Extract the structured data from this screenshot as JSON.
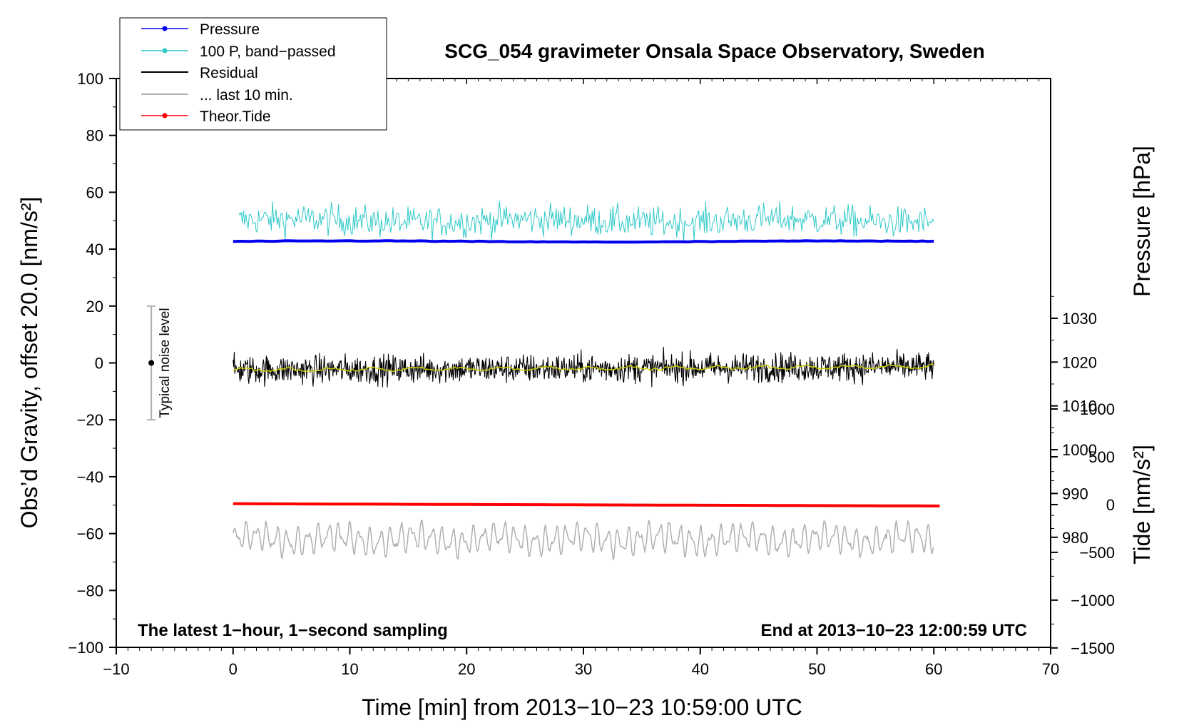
{
  "chart_data": {
    "type": "line",
    "title": "SCG_054 gravimeter Onsala Space Observatory, Sweden",
    "xlabel": "Time [min] from 2013−10−23 10:59:00 UTC",
    "ylabel_left": "Obs’d Gravity, offset 20.0 [nm/s²]",
    "ylabel_right_top": "Pressure [hPa]",
    "ylabel_right_bottom": "Tide [nm/s²]",
    "xlim": [
      -10,
      70
    ],
    "ylim": [
      -100,
      100
    ],
    "x_ticks": [
      "−10",
      "0",
      "10",
      "20",
      "30",
      "40",
      "50",
      "60",
      "70"
    ],
    "y_ticks": [
      "100",
      "80",
      "60",
      "40",
      "20",
      "0",
      "−20",
      "−40",
      "−60",
      "−80",
      "−100"
    ],
    "pressure_ticks": [
      "1030",
      "1020",
      "1010",
      "1000",
      "990",
      "980"
    ],
    "tide_ticks": [
      "1000",
      "500",
      "0",
      "−500",
      "−1000",
      "−1500"
    ],
    "annotation_left": "The latest 1−hour, 1−second sampling",
    "annotation_right": "End at 2013−10−23 12:00:59 UTC",
    "noise_label": "Typical noise level",
    "noise_bar": [
      -20,
      20
    ],
    "legend": [
      "Pressure",
      "100 P, band−passed",
      "Residual",
      "... last 10 min.",
      "Theor.Tide"
    ],
    "legend_position": "top-left",
    "series": [
      {
        "name": "Pressure",
        "color": "#0000ee",
        "center": 42.7,
        "amplitude": 0.4
      },
      {
        "name": "100 P, band−passed",
        "color": "#30c8c8",
        "center": 50,
        "amplitude": 5.5
      },
      {
        "name": "Residual",
        "color": "#000000",
        "center": -2.5,
        "amplitude": 4.5
      },
      {
        "name": "... last 10 min.",
        "color": "#b0b0b0",
        "center": -62,
        "amplitude": 6
      },
      {
        "name": "Theor.Tide",
        "color": "#ff0000",
        "x": [
          0,
          60.5
        ],
        "y": [
          -49.5,
          -50.3
        ]
      },
      {
        "name": "Smoothed residual",
        "color": "#cccc00",
        "center": -2.5,
        "amplitude": 0.8
      }
    ],
    "x_range": [
      0,
      60
    ]
  }
}
